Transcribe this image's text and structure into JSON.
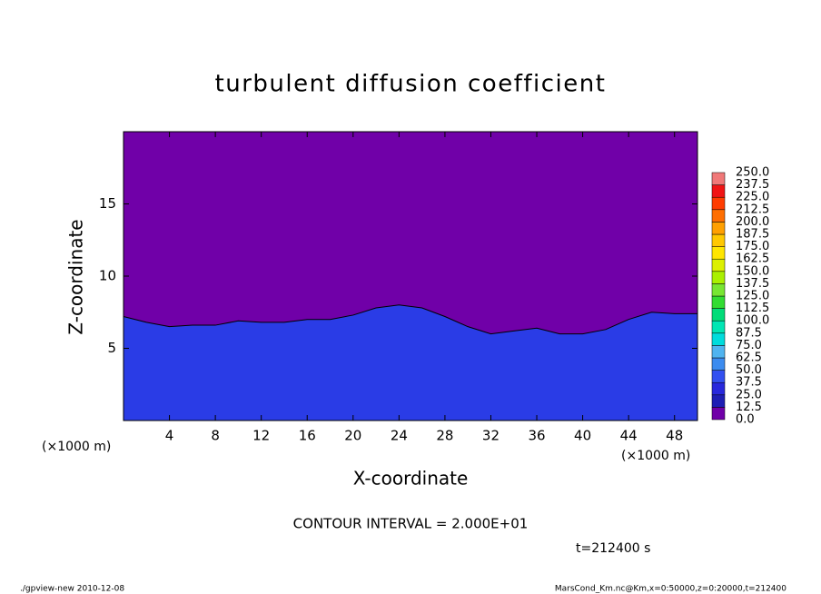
{
  "chart_data": {
    "type": "contour",
    "title": "turbulent diffusion coefficient",
    "xlabel": "X-coordinate",
    "ylabel": "Z-coordinate",
    "x_unit": "(×1000 m)",
    "x_unit_right": "(×1000 m)",
    "contour_interval": "CONTOUR INTERVAL = 2.000E+01",
    "time": "t=212400 s",
    "footer_left": "./gpview-new   2010-12-08",
    "footer_right": "MarsCond_Km.nc@Km,x=0:50000,z=0:20000,t=212400",
    "xlim": [
      0,
      50
    ],
    "ylim": [
      0,
      20
    ],
    "xticks": [
      4,
      8,
      12,
      16,
      20,
      24,
      28,
      32,
      36,
      40,
      44,
      48
    ],
    "yticks": [
      5,
      10,
      15
    ],
    "background_color": "#7000a8",
    "fill_color": "#2a3ce6",
    "x": [
      0,
      2,
      4,
      6,
      8,
      10,
      12,
      14,
      16,
      18,
      20,
      22,
      24,
      26,
      28,
      30,
      32,
      34,
      36,
      38,
      40,
      42,
      44,
      46,
      48,
      50
    ],
    "values": [
      7.2,
      6.8,
      6.5,
      6.6,
      6.6,
      6.9,
      6.8,
      6.8,
      7.0,
      7.0,
      7.3,
      7.8,
      8.0,
      7.8,
      7.2,
      6.5,
      6.0,
      6.2,
      6.4,
      6.0,
      6.0,
      6.3,
      7.0,
      7.5,
      7.4,
      7.4
    ],
    "levels": [
      {
        "value": 0,
        "label": "0.0"
      },
      12.5,
      {
        "value": 25,
        "label": "25.0"
      },
      37.5,
      {
        "value": 50,
        "label": "50.0"
      },
      62.5,
      {
        "value": 75,
        "label": "75.0"
      },
      87.5,
      {
        "value": 100,
        "label": "100.0"
      },
      112.5,
      {
        "value": 125,
        "label": "125.0"
      },
      137.5,
      {
        "value": 150,
        "label": "150.0"
      },
      162.5,
      {
        "value": 175,
        "label": "175.0"
      },
      187.5,
      {
        "value": 200,
        "label": "200.0"
      },
      212.5,
      {
        "value": 225,
        "label": "225.0"
      },
      237.5,
      {
        "value": 250,
        "label": "250.0"
      }
    ],
    "level_colors": [
      "#7000a8",
      "#1e1eb4",
      "#2828dc",
      "#3250f0",
      "#3c8cf0",
      "#50b4f0",
      "#00dcdc",
      "#00e6b4",
      "#00dc78",
      "#32dc32",
      "#78e632",
      "#aaf000",
      "#dcf000",
      "#ffe600",
      "#ffc800",
      "#ffa000",
      "#ff6e00",
      "#ff3c00",
      "#f01414",
      "#f07878"
    ]
  }
}
